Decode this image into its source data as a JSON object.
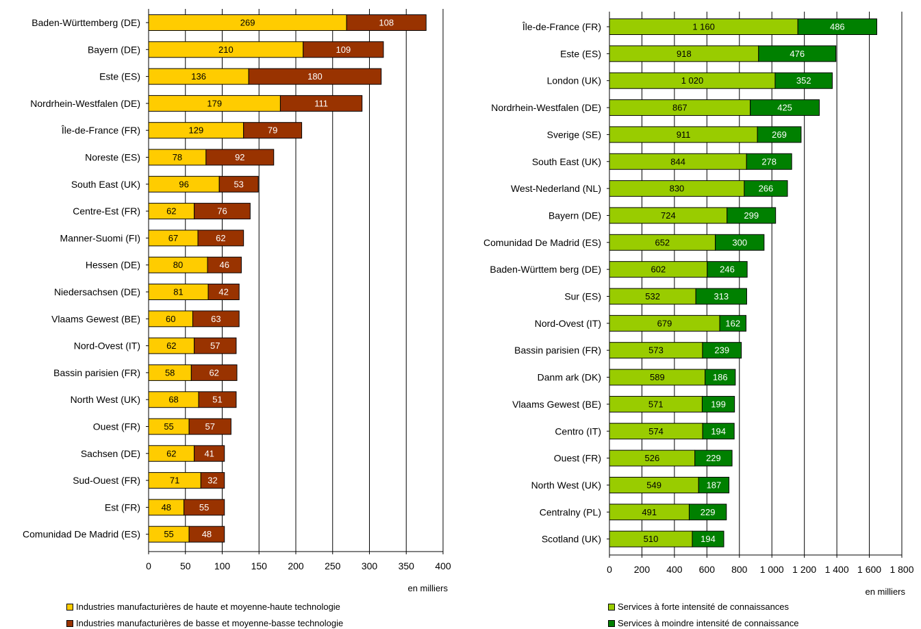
{
  "chart_data": [
    {
      "type": "bar",
      "orientation": "horizontal",
      "stacked": true,
      "categories": [
        "Baden-Württemberg (DE)",
        "Bayern (DE)",
        "Este (ES)",
        "Nordrhein-Westfalen (DE)",
        "Île-de-France (FR)",
        "Noreste (ES)",
        "South East (UK)",
        "Centre-Est (FR)",
        "Manner-Suomi (FI)",
        "Hessen (DE)",
        "Niedersachsen (DE)",
        "Vlaams Gewest (BE)",
        "Nord-Ovest (IT)",
        "Bassin parisien (FR)",
        "North West (UK)",
        "Ouest (FR)",
        "Sachsen (DE)",
        "Sud-Ouest (FR)",
        "Est (FR)",
        "Comunidad De Madrid (ES)"
      ],
      "series": [
        {
          "name": "Industries manufacturières de haute et moyenne-haute technologie",
          "color": "#ffcc00",
          "label_color": "#000000",
          "values": [
            269,
            210,
            136,
            179,
            129,
            78,
            96,
            62,
            67,
            80,
            81,
            60,
            62,
            58,
            68,
            55,
            62,
            71,
            48,
            55
          ]
        },
        {
          "name": "Industries manufacturières de basse et moyenne-basse technologie",
          "color": "#993300",
          "label_color": "#ffffff",
          "values": [
            108,
            109,
            180,
            111,
            79,
            92,
            53,
            76,
            62,
            46,
            42,
            63,
            57,
            62,
            51,
            57,
            41,
            32,
            55,
            48
          ]
        }
      ],
      "xlim": [
        0,
        400
      ],
      "xticks": [
        0,
        50,
        100,
        150,
        200,
        250,
        300,
        350,
        400
      ],
      "xtick_labels": [
        "0",
        "50",
        "100",
        "150",
        "200",
        "250",
        "300",
        "350",
        "400"
      ],
      "xlabel": "en milliers",
      "grid": "vertical",
      "legend": "bottom"
    },
    {
      "type": "bar",
      "orientation": "horizontal",
      "stacked": true,
      "categories": [
        "Île-de-France (FR)",
        "Este (ES)",
        "London (UK)",
        "Nordrhein-Westfalen (DE)",
        "Sverige (SE)",
        "South East (UK)",
        "West-Nederland (NL)",
        "Bayern (DE)",
        "Comunidad De Madrid (ES)",
        "Baden-Württem berg (DE)",
        "Sur (ES)",
        "Nord-Ovest (IT)",
        "Bassin parisien (FR)",
        "Danm ark (DK)",
        "Vlaams Gewest (BE)",
        "Centro (IT)",
        "Ouest (FR)",
        "North West (UK)",
        "Centralny (PL)",
        "Scotland (UK)"
      ],
      "series": [
        {
          "name": "Services à forte intensité de connaissances",
          "color": "#99cc00",
          "label_color": "#000000",
          "values": [
            1160,
            918,
            1020,
            867,
            911,
            844,
            830,
            724,
            652,
            602,
            532,
            679,
            573,
            589,
            571,
            574,
            526,
            549,
            491,
            510
          ],
          "labels": [
            "1 160",
            "918",
            "1 020",
            "867",
            "911",
            "844",
            "830",
            "724",
            "652",
            "602",
            "532",
            "679",
            "573",
            "589",
            "571",
            "574",
            "526",
            "549",
            "491",
            "510"
          ]
        },
        {
          "name": "Services à moindre intensité de connaissance",
          "color": "#008000",
          "label_color": "#ffffff",
          "values": [
            486,
            476,
            352,
            425,
            269,
            278,
            266,
            299,
            300,
            246,
            313,
            162,
            239,
            186,
            199,
            194,
            229,
            187,
            229,
            194
          ],
          "labels": [
            "486",
            "476",
            "352",
            "425",
            "269",
            "278",
            "266",
            "299",
            "300",
            "246",
            "313",
            "162",
            "239",
            "186",
            "199",
            "194",
            "229",
            "187",
            "229",
            "194"
          ]
        }
      ],
      "xlim": [
        0,
        1800
      ],
      "xticks": [
        0,
        200,
        400,
        600,
        800,
        1000,
        1200,
        1400,
        1600,
        1800
      ],
      "xtick_labels": [
        "0",
        "200",
        "400",
        "600",
        "800",
        "1 000",
        "1 200",
        "1 400",
        "1 600",
        "1 800"
      ],
      "xlabel": "en milliers",
      "grid": "vertical",
      "legend": "bottom"
    }
  ]
}
